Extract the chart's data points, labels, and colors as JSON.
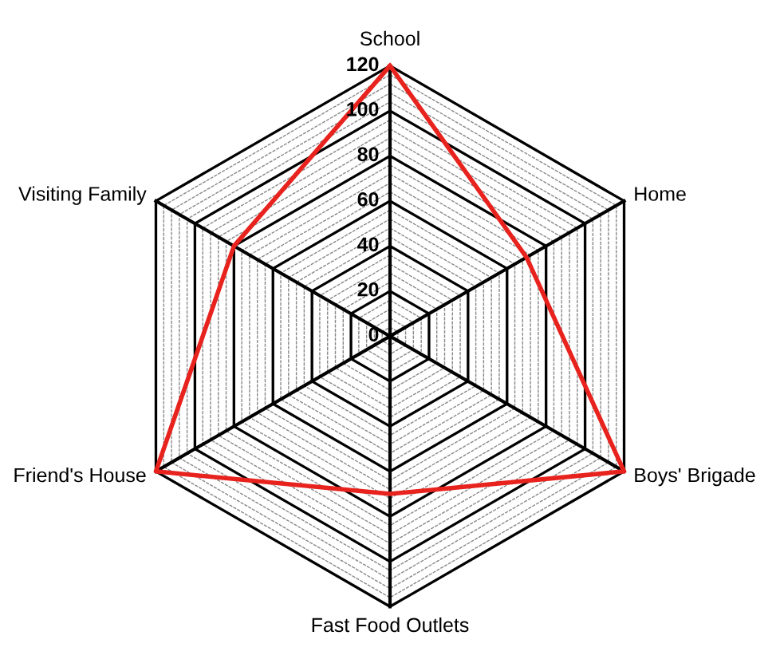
{
  "chart_data": {
    "type": "radar",
    "categories": [
      "School",
      "Home",
      "Boys' Brigade",
      "Fast Food Outlets",
      "Friend's House",
      "Visiting Family"
    ],
    "series": [
      {
        "color": "#e8231e",
        "values": [
          120,
          70,
          120,
          70,
          120,
          80
        ]
      }
    ],
    "ylim": [
      0,
      120
    ],
    "yticks": [
      0,
      20,
      40,
      60,
      80,
      100,
      120
    ],
    "grid": true,
    "marker": "none",
    "line_style": "solid"
  }
}
